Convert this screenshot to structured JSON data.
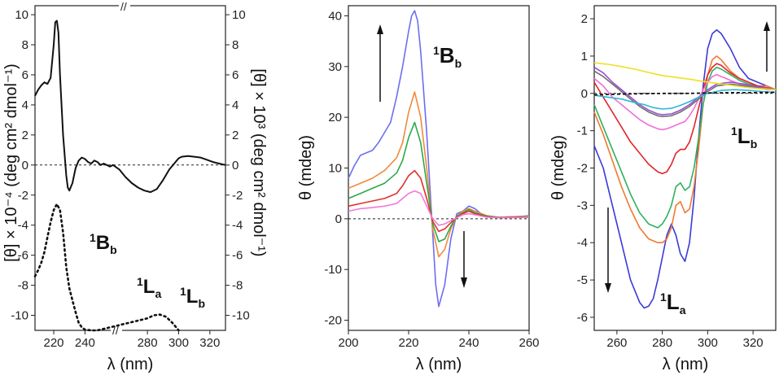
{
  "chart_data": [
    {
      "type": "line",
      "title": "",
      "xlabel": "λ (nm)",
      "ylabel": "[θ] × 10⁻⁴ (deg cm² dmol⁻¹)",
      "ylabel_right": "[θ] × 10³ (deg cm² dmol⁻¹)",
      "xlim": [
        208,
        330
      ],
      "ylim": [
        -11,
        10.6
      ],
      "xticks": [
        "220",
        "240",
        "280",
        "300",
        "320"
      ],
      "yticks_left": [
        "10",
        "8",
        "6",
        "4",
        "2",
        "0",
        "-2",
        "-4",
        "-6",
        "-8",
        "-10"
      ],
      "yticks_right": [
        "10",
        "8",
        "6",
        "4",
        "2",
        "0",
        "-2",
        "-4",
        "-6",
        "-8",
        "-10"
      ],
      "axis_break": "//",
      "zero_line": true,
      "annotations": [
        {
          "base": "B",
          "sup": "1",
          "sub": "b"
        },
        {
          "base": "L",
          "sup": "1",
          "sub": "a"
        },
        {
          "base": "L",
          "sup": "1",
          "sub": "b"
        }
      ],
      "series": [
        {
          "name": "solid",
          "style": "solid",
          "x": [
            208,
            210,
            212,
            214,
            216,
            218,
            220,
            221,
            222,
            223,
            224,
            226,
            228,
            229,
            230,
            232,
            234,
            236,
            238,
            240,
            242,
            244,
            246,
            248,
            250,
            252,
            254,
            256,
            258,
            262,
            266,
            270,
            274,
            278,
            282,
            286,
            290,
            294,
            298,
            300,
            302,
            306,
            310,
            314,
            318,
            322,
            326,
            330
          ],
          "y": [
            4.6,
            5.0,
            5.3,
            5.5,
            5.4,
            5.8,
            8.0,
            9.5,
            9.6,
            8.8,
            6.0,
            2.0,
            -0.7,
            -1.5,
            -1.7,
            -1.2,
            -0.2,
            0.3,
            0.5,
            0.4,
            0.2,
            0.1,
            0.3,
            0.2,
            0.0,
            0.1,
            0.0,
            -0.1,
            0.0,
            -0.3,
            -0.8,
            -1.2,
            -1.5,
            -1.7,
            -1.8,
            -1.6,
            -1.0,
            -0.3,
            0.2,
            0.45,
            0.55,
            0.6,
            0.55,
            0.5,
            0.35,
            0.2,
            0.1,
            0.0
          ]
        },
        {
          "name": "dotted",
          "style": "dotted",
          "x": [
            208,
            210,
            212,
            214,
            216,
            218,
            220,
            222,
            224,
            226,
            228,
            230,
            232,
            234,
            236,
            238,
            240,
            244,
            248,
            252,
            256,
            260,
            264,
            268,
            272,
            276,
            280,
            284,
            288,
            292,
            296,
            300
          ],
          "y": [
            -7.4,
            -7.0,
            -6.5,
            -5.8,
            -4.8,
            -3.8,
            -3.0,
            -2.6,
            -3.0,
            -4.5,
            -6.8,
            -8.2,
            -9.0,
            -9.8,
            -10.5,
            -10.8,
            -10.95,
            -11.0,
            -11.0,
            -10.9,
            -10.8,
            -10.7,
            -10.6,
            -10.5,
            -10.4,
            -10.3,
            -10.2,
            -10.0,
            -9.95,
            -10.1,
            -10.5,
            -11.0
          ]
        }
      ]
    },
    {
      "type": "line",
      "title": "",
      "xlabel": "λ (nm)",
      "ylabel": "θ (mdeg)",
      "xlim": [
        200,
        260
      ],
      "ylim": [
        -22,
        42
      ],
      "xticks": [
        "200",
        "220",
        "240",
        "260"
      ],
      "yticks": [
        "40",
        "30",
        "20",
        "10",
        "0",
        "-10",
        "-20"
      ],
      "zero_line": true,
      "arrows": [
        "up",
        "down"
      ],
      "annotations": [
        {
          "base": "B",
          "sup": "1",
          "sub": "b"
        }
      ],
      "series": [
        {
          "name": "blue",
          "color": "#6b6ff0",
          "x": [
            200,
            202,
            204,
            206,
            208,
            210,
            212,
            214,
            216,
            218,
            220,
            221,
            222,
            223,
            224,
            226,
            228,
            229,
            230,
            232,
            234,
            236,
            238,
            240,
            242,
            244,
            246,
            250,
            254,
            258,
            260
          ],
          "y": [
            8.0,
            10.5,
            12.5,
            13.0,
            13.5,
            15.0,
            17.0,
            19.0,
            24.0,
            30.0,
            37.0,
            40.0,
            41.0,
            39.0,
            33.0,
            17.0,
            -3.0,
            -13.0,
            -17.3,
            -13.0,
            -4.0,
            1.0,
            1.5,
            2.5,
            2.0,
            1.0,
            0.5,
            0.3,
            0.4,
            0.5,
            0.6
          ]
        },
        {
          "name": "orange",
          "color": "#f08a3c",
          "x": [
            200,
            204,
            208,
            212,
            216,
            218,
            220,
            222,
            224,
            226,
            228,
            230,
            232,
            234,
            236,
            238,
            240,
            242,
            246,
            250,
            254,
            260
          ],
          "y": [
            6.0,
            7.0,
            8.0,
            9.5,
            12.0,
            15.0,
            21.0,
            25.0,
            20.0,
            10.0,
            -2.0,
            -7.5,
            -6.0,
            -2.0,
            0.5,
            1.5,
            2.0,
            1.5,
            0.6,
            0.3,
            0.4,
            0.5
          ]
        },
        {
          "name": "green",
          "color": "#2da84a",
          "x": [
            200,
            204,
            208,
            212,
            216,
            218,
            220,
            222,
            224,
            226,
            228,
            230,
            232,
            234,
            236,
            238,
            240,
            242,
            246,
            250,
            254,
            260
          ],
          "y": [
            4.0,
            5.0,
            6.0,
            7.0,
            9.0,
            11.5,
            16.0,
            19.0,
            15.0,
            7.0,
            -1.0,
            -4.5,
            -4.0,
            -1.5,
            0.5,
            1.2,
            1.8,
            1.2,
            0.5,
            0.3,
            0.3,
            0.4
          ]
        },
        {
          "name": "red",
          "color": "#e0302c",
          "x": [
            200,
            204,
            208,
            212,
            216,
            218,
            220,
            222,
            224,
            226,
            228,
            230,
            232,
            234,
            236,
            238,
            240,
            242,
            246,
            250,
            254,
            260
          ],
          "y": [
            2.5,
            3.0,
            3.5,
            4.0,
            5.0,
            6.5,
            8.5,
            9.5,
            8.0,
            4.0,
            -0.5,
            -2.5,
            -2.0,
            -0.8,
            0.3,
            1.0,
            1.5,
            1.0,
            0.4,
            0.2,
            0.3,
            0.3
          ]
        },
        {
          "name": "pink",
          "color": "#f07ad8",
          "x": [
            200,
            204,
            208,
            212,
            216,
            218,
            220,
            222,
            224,
            226,
            228,
            230,
            232,
            234,
            236,
            238,
            240,
            242,
            246,
            250,
            254,
            260
          ],
          "y": [
            1.5,
            2.0,
            2.2,
            2.5,
            3.0,
            4.0,
            5.0,
            5.5,
            5.0,
            2.5,
            0.0,
            -1.3,
            -1.0,
            -0.4,
            0.2,
            0.8,
            1.0,
            0.8,
            0.3,
            0.2,
            0.2,
            0.3
          ]
        }
      ]
    },
    {
      "type": "line",
      "title": "",
      "xlabel": "λ (nm)",
      "ylabel": "θ (mdeg)",
      "xlim": [
        250,
        330
      ],
      "ylim": [
        -6.35,
        2.35
      ],
      "xticks": [
        "260",
        "280",
        "300",
        "320"
      ],
      "yticks": [
        "2",
        "1",
        "0",
        "-1",
        "-2",
        "-3",
        "-4",
        "-5",
        "-6"
      ],
      "zero_line": true,
      "arrows": [
        "up",
        "down"
      ],
      "annotations": [
        {
          "base": "L",
          "sup": "1",
          "sub": "b"
        },
        {
          "base": "L",
          "sup": "1",
          "sub": "a"
        }
      ],
      "series": [
        {
          "name": "blue",
          "color": "#3a3ad8",
          "x": [
            250,
            254,
            258,
            262,
            266,
            270,
            272,
            274,
            276,
            278,
            280,
            282,
            284,
            286,
            288,
            290,
            292,
            294,
            296,
            298,
            300,
            302,
            304,
            306,
            310,
            314,
            318,
            322,
            326,
            330
          ],
          "y": [
            -1.4,
            -2.0,
            -3.0,
            -4.0,
            -5.0,
            -5.6,
            -5.75,
            -5.7,
            -5.5,
            -5.0,
            -4.4,
            -3.8,
            -3.5,
            -3.8,
            -4.3,
            -4.5,
            -4.0,
            -2.8,
            -1.2,
            0.2,
            1.2,
            1.6,
            1.7,
            1.6,
            1.2,
            0.7,
            0.4,
            0.3,
            0.2,
            0.1
          ]
        },
        {
          "name": "orange",
          "color": "#f07a30",
          "x": [
            250,
            254,
            258,
            262,
            266,
            270,
            274,
            278,
            280,
            282,
            284,
            286,
            288,
            290,
            292,
            294,
            296,
            298,
            300,
            302,
            304,
            306,
            310,
            314,
            318,
            322,
            326,
            330
          ],
          "y": [
            -0.5,
            -1.1,
            -1.8,
            -2.5,
            -3.1,
            -3.6,
            -3.9,
            -4.0,
            -4.0,
            -3.9,
            -3.6,
            -3.0,
            -2.9,
            -3.2,
            -3.1,
            -2.5,
            -1.5,
            -0.3,
            0.5,
            0.9,
            1.0,
            0.9,
            0.6,
            0.4,
            0.3,
            0.2,
            0.2,
            0.1
          ]
        },
        {
          "name": "green",
          "color": "#2fb060",
          "x": [
            250,
            254,
            258,
            262,
            266,
            270,
            274,
            278,
            280,
            282,
            284,
            286,
            288,
            290,
            292,
            294,
            296,
            298,
            300,
            302,
            304,
            306,
            310,
            314,
            318,
            322,
            326,
            330
          ],
          "y": [
            -0.3,
            -0.9,
            -1.5,
            -2.1,
            -2.7,
            -3.2,
            -3.5,
            -3.6,
            -3.5,
            -3.3,
            -3.0,
            -2.5,
            -2.4,
            -2.6,
            -2.5,
            -2.0,
            -1.2,
            -0.3,
            0.3,
            0.6,
            0.7,
            0.65,
            0.5,
            0.35,
            0.25,
            0.2,
            0.15,
            0.1
          ]
        },
        {
          "name": "red",
          "color": "#e0262a",
          "x": [
            250,
            254,
            258,
            262,
            266,
            270,
            274,
            278,
            280,
            282,
            284,
            286,
            288,
            290,
            292,
            294,
            296,
            298,
            300,
            302,
            304,
            306,
            310,
            314,
            318,
            322,
            326,
            330
          ],
          "y": [
            0.3,
            -0.1,
            -0.5,
            -0.9,
            -1.3,
            -1.6,
            -1.9,
            -2.1,
            -2.15,
            -2.1,
            -1.9,
            -1.6,
            -1.5,
            -1.5,
            -1.3,
            -0.9,
            -0.4,
            0.1,
            0.5,
            0.7,
            0.8,
            0.75,
            0.55,
            0.4,
            0.3,
            0.2,
            0.15,
            0.1
          ]
        },
        {
          "name": "pink",
          "color": "#f06ed8",
          "x": [
            250,
            254,
            258,
            262,
            266,
            270,
            274,
            278,
            280,
            282,
            284,
            286,
            288,
            290,
            292,
            294,
            296,
            298,
            300,
            302,
            304,
            306,
            310,
            314,
            318,
            322,
            326,
            330
          ],
          "y": [
            0.4,
            0.2,
            -0.1,
            -0.3,
            -0.5,
            -0.7,
            -0.85,
            -0.95,
            -0.97,
            -0.95,
            -0.9,
            -0.85,
            -0.8,
            -0.75,
            -0.6,
            -0.4,
            -0.15,
            0.1,
            0.3,
            0.45,
            0.5,
            0.45,
            0.35,
            0.25,
            0.2,
            0.15,
            0.1,
            0.1
          ]
        },
        {
          "name": "gray",
          "color": "#707070",
          "x": [
            250,
            254,
            258,
            262,
            266,
            270,
            274,
            278,
            280,
            284,
            288,
            292,
            296,
            300,
            304,
            310,
            316,
            322,
            330
          ],
          "y": [
            0.6,
            0.45,
            0.25,
            0.05,
            -0.15,
            -0.35,
            -0.5,
            -0.6,
            -0.62,
            -0.6,
            -0.5,
            -0.35,
            -0.15,
            0.05,
            0.2,
            0.25,
            0.2,
            0.15,
            0.1
          ]
        },
        {
          "name": "purple",
          "color": "#9a4ed0",
          "x": [
            250,
            254,
            258,
            262,
            266,
            270,
            274,
            278,
            280,
            284,
            288,
            292,
            296,
            300,
            304,
            310,
            316,
            322,
            330
          ],
          "y": [
            0.7,
            0.55,
            0.3,
            0.1,
            -0.1,
            -0.3,
            -0.45,
            -0.55,
            -0.57,
            -0.55,
            -0.45,
            -0.3,
            -0.1,
            0.1,
            0.25,
            0.3,
            0.25,
            0.18,
            0.1
          ]
        },
        {
          "name": "teal",
          "color": "#2fb7d6",
          "x": [
            250,
            256,
            262,
            268,
            272,
            276,
            280,
            284,
            288,
            292,
            296,
            300,
            306,
            312,
            318,
            324,
            330
          ],
          "y": [
            -0.05,
            -0.1,
            -0.15,
            -0.25,
            -0.3,
            -0.38,
            -0.42,
            -0.4,
            -0.32,
            -0.22,
            -0.1,
            0.0,
            0.08,
            0.1,
            0.08,
            0.05,
            0.03
          ]
        },
        {
          "name": "yellow",
          "color": "#f0e020",
          "x": [
            250,
            256,
            262,
            268,
            274,
            280,
            286,
            292,
            298,
            304,
            310,
            316,
            322,
            330
          ],
          "y": [
            0.82,
            0.78,
            0.72,
            0.65,
            0.56,
            0.48,
            0.43,
            0.38,
            0.32,
            0.27,
            0.22,
            0.17,
            0.13,
            0.1
          ]
        },
        {
          "name": "dashed-black",
          "color": "#111111",
          "style": "dashed",
          "x": [
            250,
            260,
            270,
            280,
            290,
            300,
            310,
            320,
            330
          ],
          "y": [
            -0.04,
            -0.02,
            -0.01,
            0.0,
            0.0,
            0.01,
            0.02,
            0.02,
            0.03
          ]
        }
      ]
    }
  ]
}
